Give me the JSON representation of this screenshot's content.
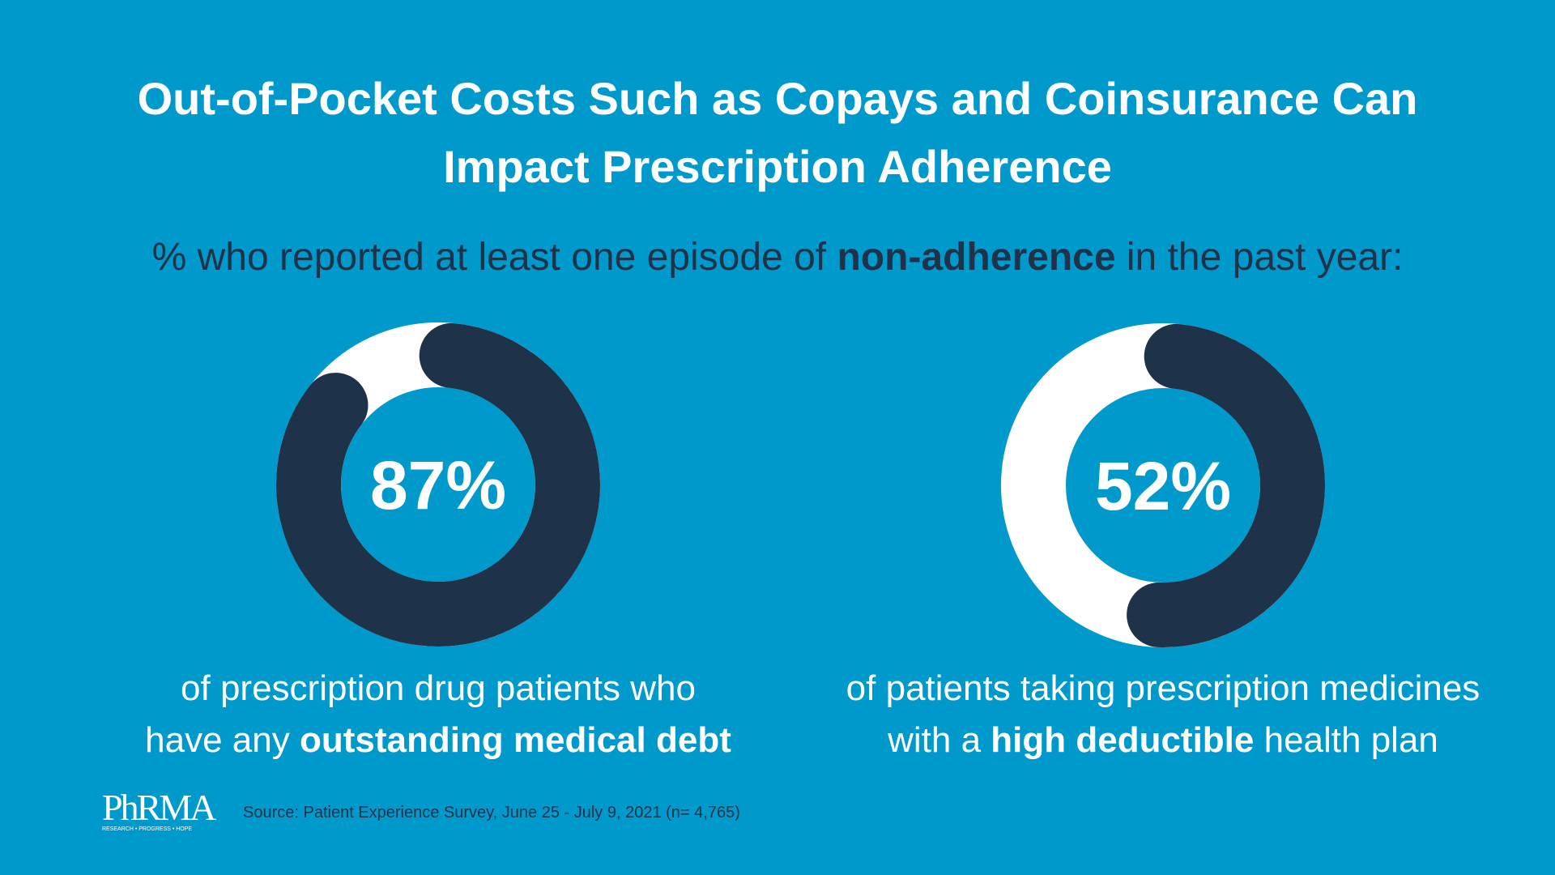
{
  "title": {
    "line1": "Out-of-Pocket Costs Such as Copays and Coinsurance Can",
    "line2": "Impact Prescription Adherence"
  },
  "subtitle": {
    "before": "% who reported at least one episode of ",
    "bold": "non-adherence",
    "after": " in the past year:"
  },
  "colors": {
    "background": "#0099cc",
    "filled": "#1e3349",
    "remainder": "#ffffff"
  },
  "chart_data": [
    {
      "type": "pie",
      "variant": "donut",
      "value": 87,
      "label": "87%",
      "caption": {
        "line1": "of prescription drug patients who",
        "pre": "have any ",
        "bold": "outstanding medical debt",
        "post": ""
      }
    },
    {
      "type": "pie",
      "variant": "donut",
      "value": 52,
      "label": "52%",
      "caption": {
        "line1": "of patients taking prescription medicines",
        "pre": "with a ",
        "bold": "high deductible",
        "post": " health plan"
      }
    }
  ],
  "footer": {
    "logo_text": "PhRMA",
    "logo_tagline": "RESEARCH • PROGRESS • HOPE",
    "source": "Source: Patient Experience Survey, June 25 - July 9, 2021 (n= 4,765)"
  }
}
